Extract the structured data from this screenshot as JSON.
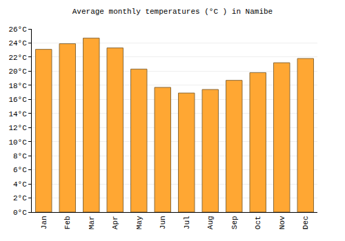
{
  "chart_data": {
    "type": "bar",
    "title": "Average monthly temperatures (°C ) in Namibe",
    "categories": [
      "Jan",
      "Feb",
      "Mar",
      "Apr",
      "May",
      "Jun",
      "Jul",
      "Aug",
      "Sep",
      "Oct",
      "Nov",
      "Dec"
    ],
    "values": [
      23.1,
      23.9,
      24.7,
      23.3,
      20.3,
      17.7,
      16.9,
      17.4,
      18.7,
      19.8,
      21.2,
      21.8
    ],
    "color": "#ffa733",
    "ylim": [
      0,
      26
    ],
    "yticks": [
      {
        "value": 0,
        "label": "0°C"
      },
      {
        "value": 2,
        "label": "2°C"
      },
      {
        "value": 4,
        "label": "4°C"
      },
      {
        "value": 6,
        "label": "6°C"
      },
      {
        "value": 8,
        "label": "8°C"
      },
      {
        "value": 10,
        "label": "10°C"
      },
      {
        "value": 12,
        "label": "12°C"
      },
      {
        "value": 14,
        "label": "14°C"
      },
      {
        "value": 16,
        "label": "16°C"
      },
      {
        "value": 18,
        "label": "18°C"
      },
      {
        "value": 20,
        "label": "20°C"
      },
      {
        "value": 22,
        "label": "22°C"
      },
      {
        "value": 24,
        "label": "24°C"
      },
      {
        "value": 26,
        "label": "26°C"
      }
    ],
    "grid": true
  }
}
